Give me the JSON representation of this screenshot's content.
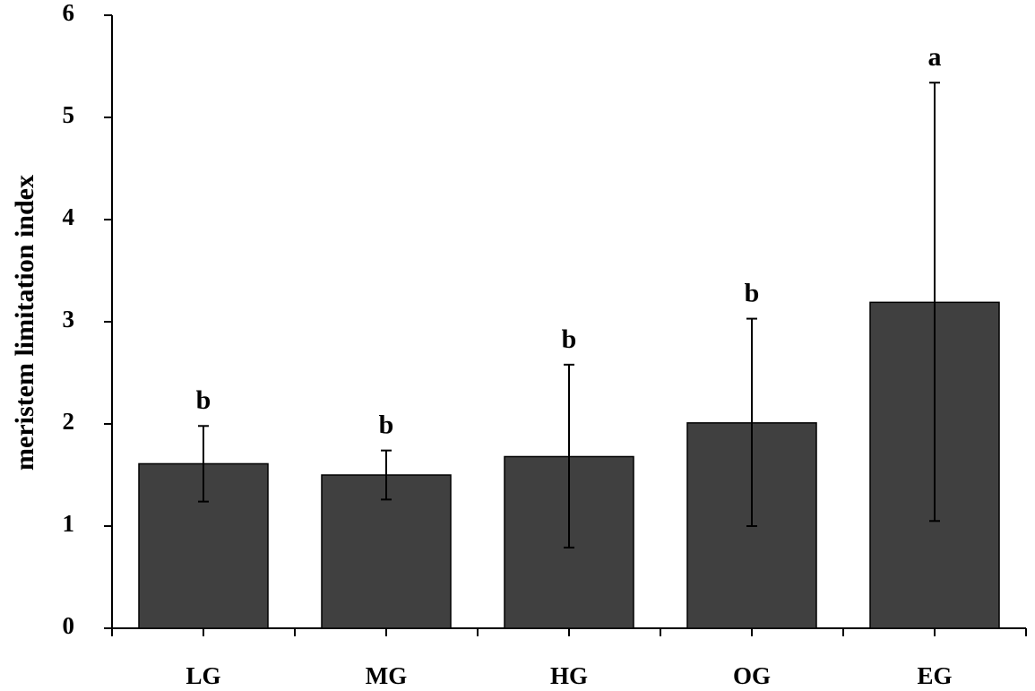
{
  "chart_data": {
    "type": "bar",
    "title": "",
    "xlabel": "",
    "ylabel": "meristem limitation index",
    "ylim": [
      0,
      6
    ],
    "yticks": [
      0,
      1,
      2,
      3,
      4,
      5,
      6
    ],
    "grid": false,
    "categories": [
      "LG",
      "MG",
      "HG",
      "OG",
      "EG"
    ],
    "values": [
      1.61,
      1.5,
      1.68,
      2.01,
      3.19
    ],
    "error_low": [
      1.24,
      1.26,
      0.79,
      1.0,
      1.05
    ],
    "error_high": [
      1.98,
      1.74,
      2.58,
      3.03,
      5.34
    ],
    "annotations": [
      "b",
      "b",
      "b",
      "b",
      "a"
    ],
    "colors": {
      "bar": "#404040",
      "bar_stroke": "#000000",
      "axis": "#000000"
    }
  }
}
